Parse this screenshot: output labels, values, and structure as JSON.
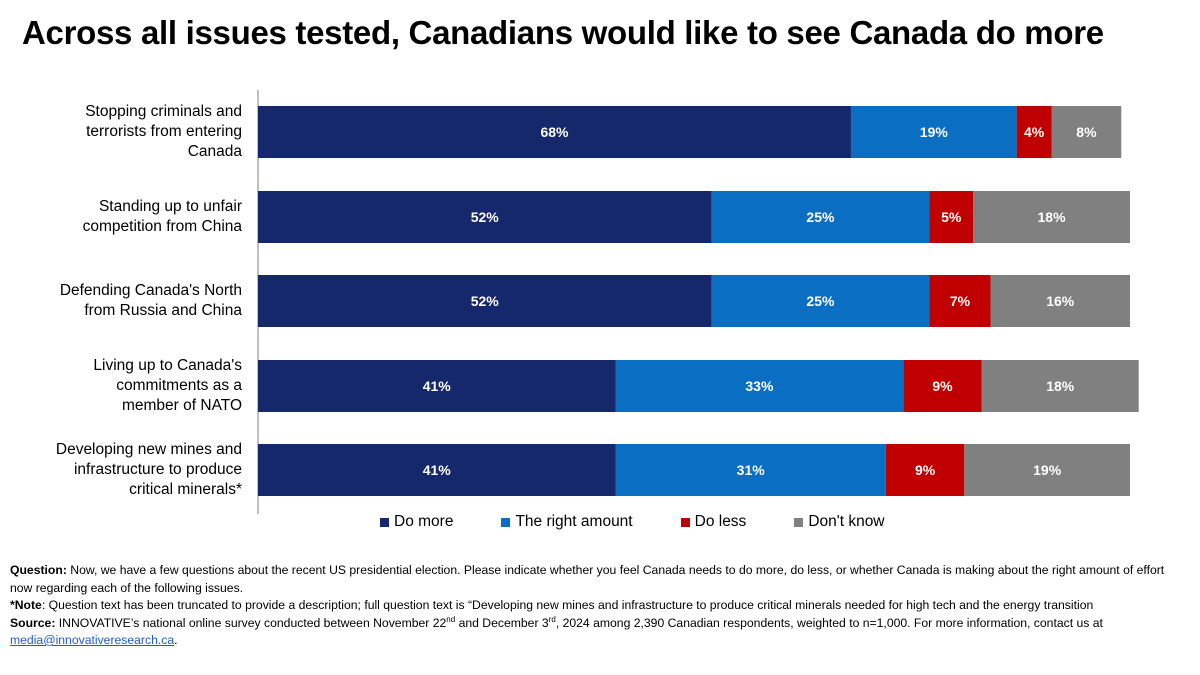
{
  "title": "Across all issues tested, Canadians would like to see Canada do more",
  "chart_data": {
    "type": "bar",
    "orientation": "horizontal",
    "stacked": true,
    "categories": [
      "Stopping criminals and terrorists from entering Canada",
      "Standing up to unfair competition from China",
      "Defending Canada's North from Russia and China",
      "Living up to Canada's commitments as a member of NATO",
      "Developing new mines and infrastructure to produce critical minerals*"
    ],
    "category_lines": [
      [
        "Stopping criminals and",
        "terrorists from entering",
        "Canada"
      ],
      [
        "Standing up to unfair",
        "competition from China"
      ],
      [
        "Defending Canada's North",
        "from Russia and China"
      ],
      [
        "Living up to Canada's",
        "commitments as a",
        "member of NATO"
      ],
      [
        "Developing new mines and",
        "infrastructure to produce",
        "critical minerals*"
      ]
    ],
    "series": [
      {
        "name": "Do more",
        "color": "#14286b",
        "values": [
          68,
          52,
          52,
          41,
          41
        ]
      },
      {
        "name": "The right amount",
        "color": "#0a6fc2",
        "values": [
          19,
          25,
          25,
          33,
          31
        ]
      },
      {
        "name": "Do less",
        "color": "#c00000",
        "values": [
          4,
          5,
          7,
          9,
          9
        ]
      },
      {
        "name": "Don't know",
        "color": "#808080",
        "values": [
          8,
          18,
          16,
          18,
          19
        ]
      }
    ],
    "value_suffix": "%",
    "xlim": [
      0,
      100
    ],
    "grid": false,
    "legend_position": "bottom"
  },
  "footnotes": {
    "question_label": "Question:",
    "question_text": " Now, we have a few questions about the recent US presidential election. Please indicate whether you feel Canada needs to do more, do less, or whether Canada is making about the right amount of effort now regarding each of the following issues.",
    "note_label": "*Note",
    "note_text": ": Question text has been truncated to provide a description; full question text is “Developing new mines and infrastructure to produce critical minerals needed for high tech and the energy transition",
    "source_label": "Source:",
    "source_text_1": " INNOVATIVE’s national online survey conducted between November 22",
    "source_sup_1": "nd",
    "source_text_2": " and December 3",
    "source_sup_2": "rd",
    "source_text_3": ", 2024 among 2,390 Canadian respondents, weighted to n=1,000. For more information, contact us at ",
    "email": "media@innovativeresearch.ca",
    "source_text_4": "."
  }
}
